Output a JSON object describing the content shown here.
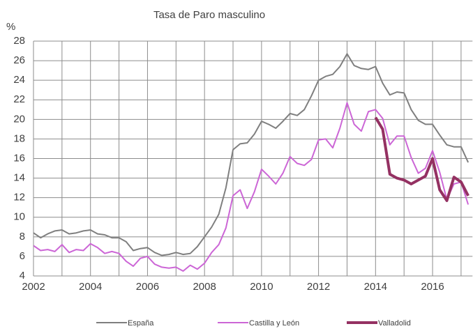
{
  "chart_data": {
    "type": "line",
    "title": "Tasa de Paro masculino",
    "y_label": "%",
    "xlim": [
      2002,
      2017.4
    ],
    "xticks": [
      2002,
      2004,
      2006,
      2008,
      2010,
      2012,
      2014,
      2016
    ],
    "x_minor_ticks": [
      2003,
      2005,
      2007,
      2009,
      2011,
      2013,
      2015,
      2017
    ],
    "ylim": [
      4,
      28
    ],
    "yticks": [
      4,
      6,
      8,
      10,
      12,
      14,
      16,
      18,
      20,
      22,
      24,
      26,
      28
    ],
    "grid": true,
    "legend": "bottom",
    "x": [
      2002,
      2002.25,
      2002.5,
      2002.75,
      2003,
      2003.25,
      2003.5,
      2003.75,
      2004,
      2004.25,
      2004.5,
      2004.75,
      2005,
      2005.25,
      2005.5,
      2005.75,
      2006,
      2006.25,
      2006.5,
      2006.75,
      2007,
      2007.25,
      2007.5,
      2007.75,
      2008,
      2008.25,
      2008.5,
      2008.75,
      2009,
      2009.25,
      2009.5,
      2009.75,
      2010,
      2010.25,
      2010.5,
      2010.75,
      2011,
      2011.25,
      2011.5,
      2011.75,
      2012,
      2012.25,
      2012.5,
      2012.75,
      2013,
      2013.25,
      2013.5,
      2013.75,
      2014,
      2014.25,
      2014.5,
      2014.75,
      2015,
      2015.25,
      2015.5,
      2015.75,
      2016,
      2016.25,
      2016.5,
      2016.75,
      2017,
      2017.25
    ],
    "series": [
      {
        "name": "España",
        "color": "#7f7f7f",
        "width": 2,
        "values": [
          8.4,
          7.9,
          8.3,
          8.6,
          8.7,
          8.3,
          8.4,
          8.6,
          8.7,
          8.3,
          8.2,
          7.9,
          7.9,
          7.5,
          6.6,
          6.8,
          6.9,
          6.4,
          6.1,
          6.2,
          6.4,
          6.2,
          6.3,
          7.0,
          8.0,
          9.0,
          10.3,
          13.0,
          16.9,
          17.5,
          17.6,
          18.5,
          19.8,
          19.5,
          19.1,
          19.8,
          20.6,
          20.4,
          21.0,
          22.4,
          24.0,
          24.4,
          24.6,
          25.4,
          26.7,
          25.5,
          25.2,
          25.1,
          25.4,
          23.7,
          22.5,
          22.8,
          22.7,
          21.0,
          19.9,
          19.5,
          19.5,
          18.4,
          17.4,
          17.2,
          17.2,
          15.6
        ]
      },
      {
        "name": "Castilla y León",
        "color": "#cc66d6",
        "width": 2,
        "values": [
          7.1,
          6.6,
          6.7,
          6.5,
          7.2,
          6.4,
          6.7,
          6.6,
          7.3,
          6.9,
          6.3,
          6.5,
          6.3,
          5.5,
          5.0,
          5.8,
          6.0,
          5.2,
          4.9,
          4.8,
          4.9,
          4.5,
          5.1,
          4.7,
          5.3,
          6.4,
          7.2,
          8.9,
          12.2,
          12.8,
          10.9,
          12.6,
          14.9,
          14.2,
          13.4,
          14.5,
          16.2,
          15.5,
          15.3,
          15.9,
          17.9,
          18.0,
          17.1,
          19.1,
          21.7,
          19.5,
          18.8,
          20.8,
          21.0,
          20.1,
          17.4,
          18.3,
          18.3,
          16.1,
          14.5,
          15.0,
          16.8,
          14.6,
          11.8,
          13.4,
          13.6,
          11.3
        ]
      },
      {
        "name": "Valladolid",
        "color": "#943162",
        "width": 4,
        "values": [
          null,
          null,
          null,
          null,
          null,
          null,
          null,
          null,
          null,
          null,
          null,
          null,
          null,
          null,
          null,
          null,
          null,
          null,
          null,
          null,
          null,
          null,
          null,
          null,
          null,
          null,
          null,
          null,
          null,
          null,
          null,
          null,
          null,
          null,
          null,
          null,
          null,
          null,
          null,
          null,
          null,
          null,
          null,
          null,
          null,
          null,
          null,
          null,
          20.2,
          19.0,
          14.4,
          14.0,
          13.8,
          13.4,
          13.8,
          14.2,
          16.0,
          12.8,
          11.7,
          14.1,
          13.6,
          12.2
        ]
      }
    ]
  }
}
